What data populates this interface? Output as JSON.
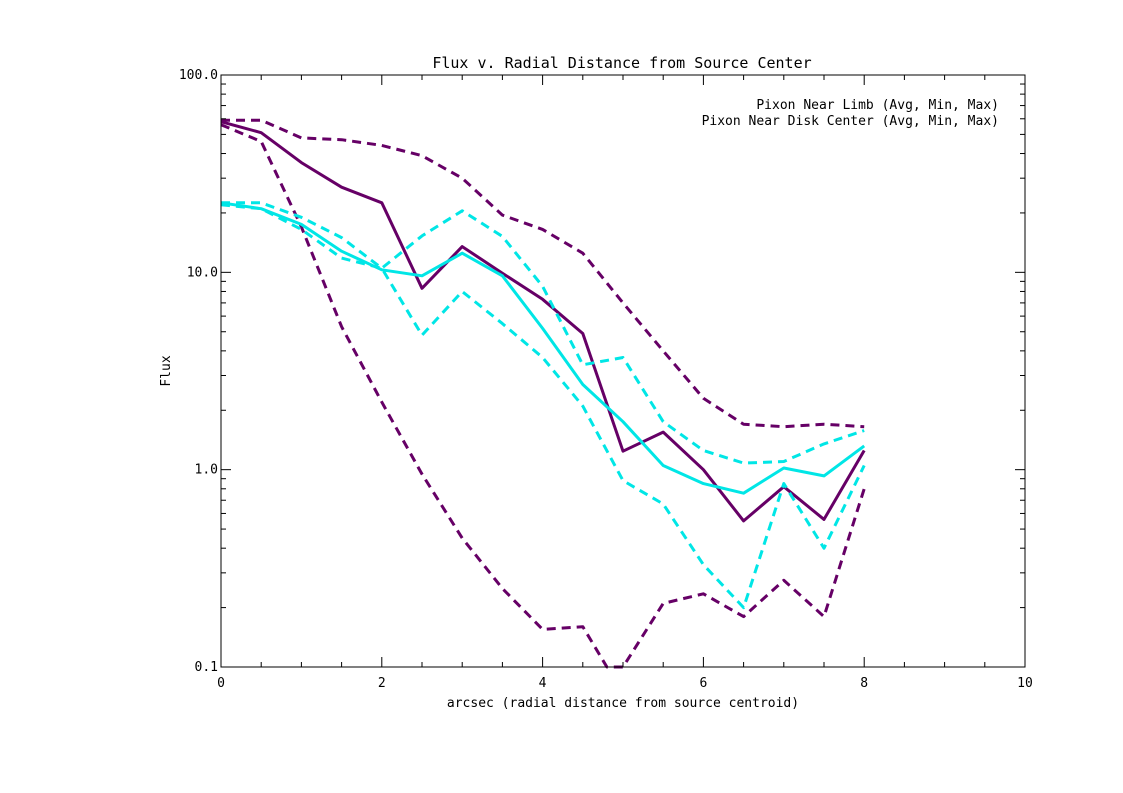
{
  "chart_data": {
    "type": "line",
    "title": "Flux v. Radial Distance from Source Center",
    "xlabel": "arcsec (radial distance from source centroid)",
    "ylabel": "Flux",
    "xlim": [
      0,
      10
    ],
    "ylim": [
      0.1,
      100
    ],
    "yscale": "log",
    "grid": false,
    "legend_position": "top-right",
    "x_ticks": [
      0,
      2,
      4,
      6,
      8,
      10
    ],
    "x_tick_labels": [
      "0",
      "2",
      "4",
      "6",
      "8",
      "10"
    ],
    "y_ticks": [
      0.1,
      1,
      10,
      100
    ],
    "y_tick_labels": [
      "0.1",
      "1.0",
      "10.0",
      "100.0"
    ],
    "legend": [
      {
        "label": "Pixon Near Limb (Avg, Min, Max)",
        "color": "#660066"
      },
      {
        "label": "Pixon Near Disk Center (Avg, Min, Max)",
        "color": "#00e6e6"
      }
    ],
    "series": [
      {
        "name": "Limb Avg",
        "color": "#660066",
        "style": "solid",
        "x": [
          0,
          0.5,
          1,
          1.5,
          2,
          2.5,
          3,
          3.5,
          4,
          4.5,
          5,
          5.5,
          6,
          6.5,
          7,
          7.5,
          8
        ],
        "y": [
          58,
          51,
          36,
          27,
          22.5,
          8.3,
          13.5,
          9.9,
          7.3,
          4.9,
          1.24,
          1.55,
          1.0,
          0.55,
          0.82,
          0.56,
          1.25
        ]
      },
      {
        "name": "Limb Min",
        "color": "#660066",
        "style": "dashed",
        "x": [
          0,
          0.5,
          1,
          1.5,
          2,
          2.5,
          3,
          3.5,
          4,
          4.5,
          4.8,
          5,
          5.5,
          6,
          6.5,
          7,
          7.5,
          8
        ],
        "y": [
          56,
          46,
          17,
          5.3,
          2.2,
          0.95,
          0.45,
          0.25,
          0.155,
          0.16,
          0.1,
          0.1,
          0.21,
          0.235,
          0.18,
          0.275,
          0.18,
          0.8
        ]
      },
      {
        "name": "Limb Max",
        "color": "#660066",
        "style": "dashed",
        "x": [
          0,
          0.5,
          1,
          1.5,
          2,
          2.5,
          3,
          3.5,
          4,
          4.5,
          5,
          5.5,
          6,
          6.5,
          7,
          7.5,
          8
        ],
        "y": [
          59,
          59,
          48,
          47,
          44,
          39,
          30,
          19.5,
          16.5,
          12.5,
          7.0,
          4.0,
          2.3,
          1.7,
          1.65,
          1.7,
          1.65
        ]
      },
      {
        "name": "Disk Avg",
        "color": "#00e6e6",
        "style": "solid",
        "x": [
          0,
          0.5,
          1,
          1.5,
          2,
          2.5,
          3,
          3.5,
          4,
          4.5,
          5,
          5.5,
          6,
          6.5,
          7,
          7.5,
          8
        ],
        "y": [
          22.5,
          21,
          17.5,
          12.8,
          10.3,
          9.6,
          12.5,
          9.6,
          5.2,
          2.7,
          1.75,
          1.05,
          0.85,
          0.76,
          1.02,
          0.93,
          1.32
        ]
      },
      {
        "name": "Disk Min",
        "color": "#00e6e6",
        "style": "dashed",
        "x": [
          0,
          0.5,
          1,
          1.5,
          2,
          2.5,
          3,
          3.5,
          4,
          4.5,
          5,
          5.5,
          6,
          6.5,
          7,
          7.5,
          8
        ],
        "y": [
          22,
          21,
          16.5,
          11.8,
          10.5,
          4.8,
          8.0,
          5.5,
          3.7,
          2.1,
          0.88,
          0.67,
          0.33,
          0.2,
          0.85,
          0.4,
          1.05
        ]
      },
      {
        "name": "Disk Max",
        "color": "#00e6e6",
        "style": "dashed",
        "x": [
          0,
          0.5,
          1,
          1.5,
          2,
          2.5,
          3,
          3.5,
          4,
          4.5,
          5,
          5.5,
          6,
          6.5,
          7,
          7.5,
          8
        ],
        "y": [
          22.5,
          22.5,
          19,
          15,
          10.5,
          15.3,
          20.5,
          15.2,
          8.5,
          3.4,
          3.7,
          1.75,
          1.25,
          1.08,
          1.1,
          1.35,
          1.58
        ]
      }
    ]
  }
}
